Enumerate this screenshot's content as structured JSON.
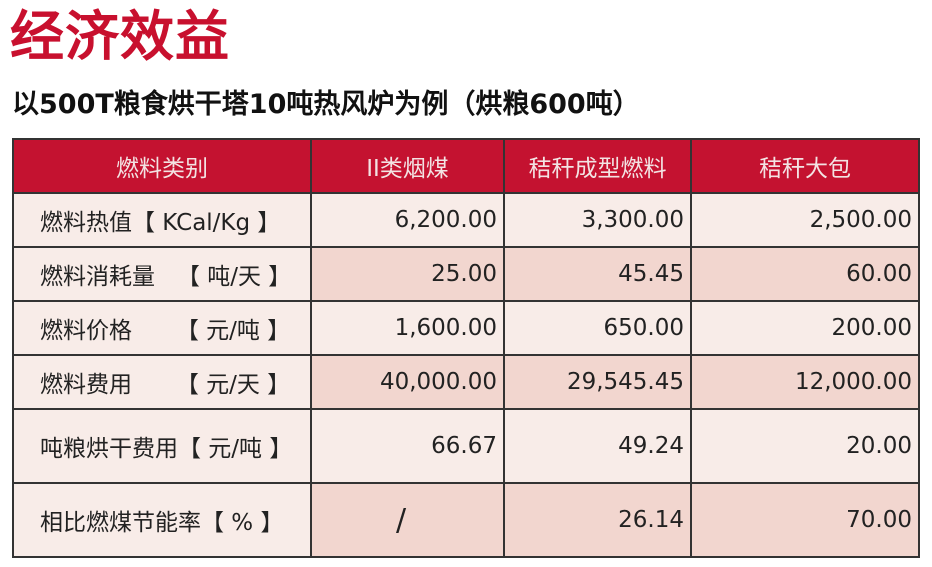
{
  "title": "经济效益",
  "subtitle": "以500T粮食烘干塔10吨热风炉为例（烘粮600吨）",
  "table": {
    "headers": [
      "燃料类别",
      "II类烟煤",
      "秸秆成型燃料",
      "秸秆大包"
    ],
    "rows": [
      {
        "label": "燃料热值【 KCal/Kg 】",
        "values": [
          "6,200.00",
          "3,300.00",
          "2,500.00"
        ]
      },
      {
        "label": "燃料消耗量   【 吨/天 】",
        "values": [
          "25.00",
          "45.45",
          "60.00"
        ]
      },
      {
        "label": "燃料价格      【 元/吨 】",
        "values": [
          "1,600.00",
          "650.00",
          "200.00"
        ]
      },
      {
        "label": "燃料费用      【 元/天 】",
        "values": [
          "40,000.00",
          "29,545.45",
          "12,000.00"
        ]
      },
      {
        "label": "吨粮烘干费用【 元/吨 】",
        "values": [
          "66.67",
          "49.24",
          "20.00"
        ]
      },
      {
        "label": "相比燃煤节能率【 % 】",
        "values": [
          "/",
          "26.14",
          "70.00"
        ]
      }
    ]
  },
  "colors": {
    "accent": "#c8102e",
    "header_bg": "#c41230",
    "row_light": "#f8ece8",
    "row_pink": "#f2d6cf"
  }
}
